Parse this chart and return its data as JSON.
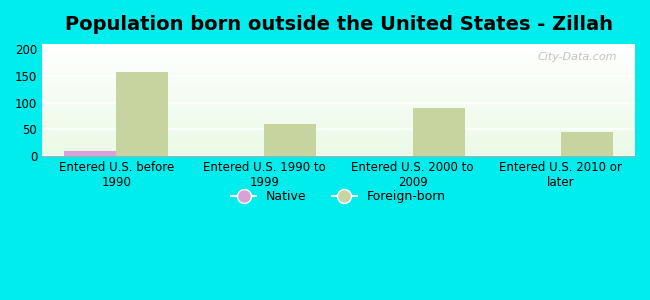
{
  "title": "Population born outside the United States - Zillah",
  "categories": [
    "Entered U.S. before\n1990",
    "Entered U.S. 1990 to\n1999",
    "Entered U.S. 2000 to\n2009",
    "Entered U.S. 2010 or\nlater"
  ],
  "native_values": [
    10,
    0,
    0,
    0
  ],
  "foreign_values": [
    157,
    60,
    90,
    45
  ],
  "native_color": "#d9a0d9",
  "foreign_color": "#c8d4a0",
  "background_outer": "#00eded",
  "ylim": [
    0,
    210
  ],
  "yticks": [
    0,
    50,
    100,
    150,
    200
  ],
  "bar_width": 0.35,
  "title_fontsize": 14,
  "tick_fontsize": 8.5,
  "legend_native": "Native",
  "legend_foreign": "Foreign-born",
  "watermark": "City-Data.com"
}
